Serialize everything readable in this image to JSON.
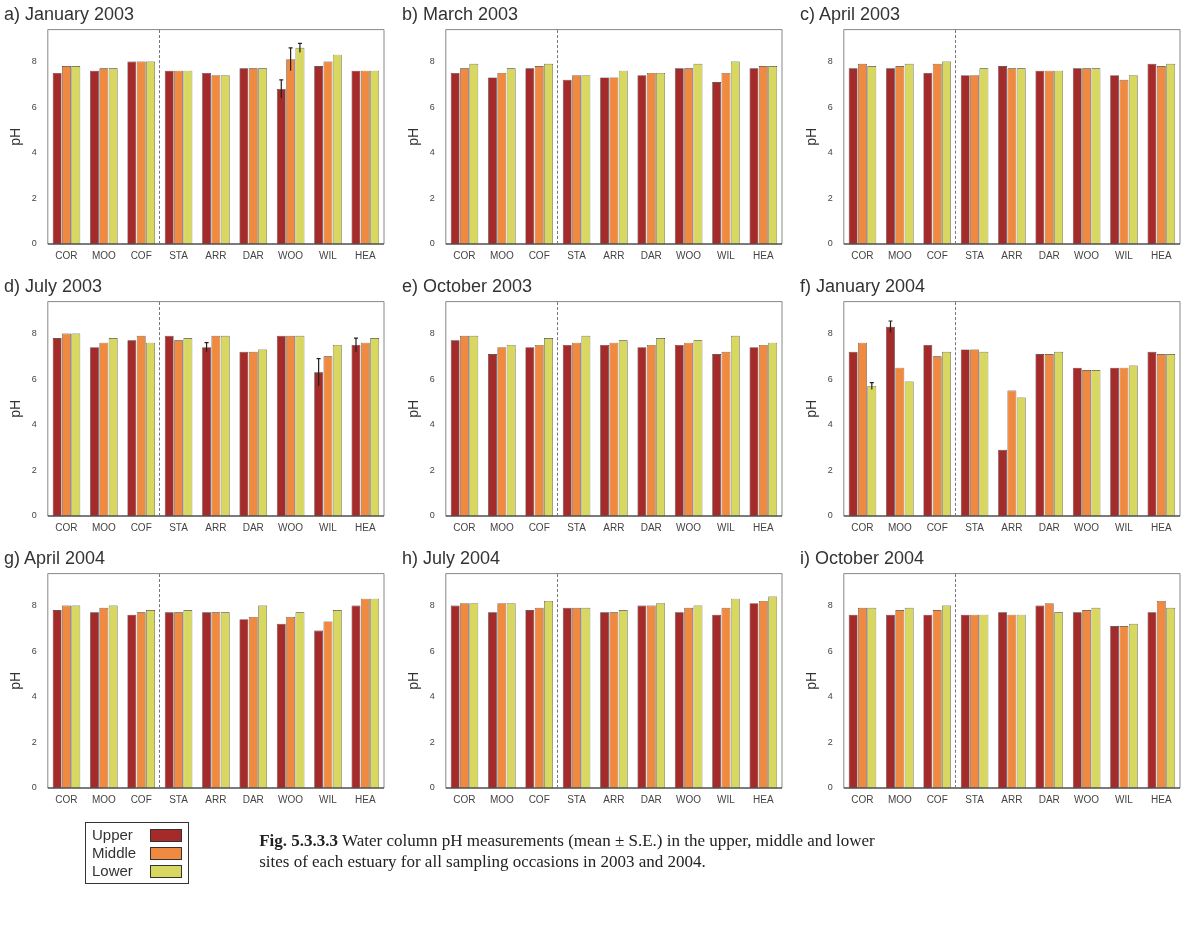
{
  "chart_data": [
    {
      "type": "bar",
      "title": "a) January 2003",
      "ylabel": "pH",
      "categories": [
        "COR",
        "MOO",
        "COF",
        "STA",
        "ARR",
        "DAR",
        "WOO",
        "WIL",
        "HEA"
      ],
      "ylim": [
        0,
        9.4
      ],
      "yticks": [
        0,
        2,
        4,
        6,
        8
      ],
      "grid": false,
      "legend": false,
      "series": [
        {
          "color": "#a52a2a",
          "values": [
            7.5,
            7.6,
            8.0,
            7.6,
            7.5,
            7.7,
            6.8,
            7.8,
            7.6
          ],
          "errors": [
            null,
            null,
            null,
            null,
            null,
            null,
            0.4,
            null,
            null
          ]
        },
        {
          "color": "#f08a40",
          "values": [
            7.8,
            7.7,
            8.0,
            7.6,
            7.4,
            7.7,
            8.1,
            8.0,
            7.6
          ],
          "errors": [
            null,
            null,
            null,
            null,
            null,
            null,
            0.5,
            null,
            null
          ]
        },
        {
          "color": "#d8d860",
          "values": [
            7.8,
            7.7,
            8.0,
            7.6,
            7.4,
            7.7,
            8.6,
            8.3,
            7.6
          ],
          "errors": [
            null,
            null,
            null,
            null,
            null,
            null,
            0.2,
            null,
            null
          ]
        }
      ]
    },
    {
      "type": "bar",
      "title": "b) March 2003",
      "ylabel": "pH",
      "categories": [
        "COR",
        "MOO",
        "COF",
        "STA",
        "ARR",
        "DAR",
        "WOO",
        "WIL",
        "HEA"
      ],
      "ylim": [
        0,
        9.4
      ],
      "yticks": [
        0,
        2,
        4,
        6,
        8
      ],
      "grid": false,
      "legend": false,
      "series": [
        {
          "color": "#a52a2a",
          "values": [
            7.5,
            7.3,
            7.7,
            7.2,
            7.3,
            7.4,
            7.7,
            7.1,
            7.7
          ]
        },
        {
          "color": "#f08a40",
          "values": [
            7.7,
            7.5,
            7.8,
            7.4,
            7.3,
            7.5,
            7.7,
            7.5,
            7.8
          ]
        },
        {
          "color": "#d8d860",
          "values": [
            7.9,
            7.7,
            7.9,
            7.4,
            7.6,
            7.5,
            7.9,
            8.0,
            7.8
          ]
        }
      ]
    },
    {
      "type": "bar",
      "title": "c) April 2003",
      "ylabel": "pH",
      "categories": [
        "COR",
        "MOO",
        "COF",
        "STA",
        "ARR",
        "DAR",
        "WOO",
        "WIL",
        "HEA"
      ],
      "ylim": [
        0,
        9.4
      ],
      "yticks": [
        0,
        2,
        4,
        6,
        8
      ],
      "grid": false,
      "legend": false,
      "series": [
        {
          "color": "#a52a2a",
          "values": [
            7.7,
            7.7,
            7.5,
            7.4,
            7.8,
            7.6,
            7.7,
            7.4,
            7.9
          ]
        },
        {
          "color": "#f08a40",
          "values": [
            7.9,
            7.8,
            7.9,
            7.4,
            7.7,
            7.6,
            7.7,
            7.2,
            7.8
          ]
        },
        {
          "color": "#d8d860",
          "values": [
            7.8,
            7.9,
            8.0,
            7.7,
            7.7,
            7.6,
            7.7,
            7.4,
            7.9
          ]
        }
      ]
    },
    {
      "type": "bar",
      "title": "d) July 2003",
      "ylabel": "pH",
      "categories": [
        "COR",
        "MOO",
        "COF",
        "STA",
        "ARR",
        "DAR",
        "WOO",
        "WIL",
        "HEA"
      ],
      "ylim": [
        0,
        9.4
      ],
      "yticks": [
        0,
        2,
        4,
        6,
        8
      ],
      "grid": false,
      "legend": false,
      "series": [
        {
          "color": "#a52a2a",
          "values": [
            7.8,
            7.4,
            7.7,
            7.9,
            7.4,
            7.2,
            7.9,
            6.3,
            7.5
          ],
          "errors": [
            null,
            null,
            null,
            null,
            0.2,
            null,
            null,
            0.6,
            0.3
          ]
        },
        {
          "color": "#f08a40",
          "values": [
            8.0,
            7.6,
            7.9,
            7.7,
            7.9,
            7.2,
            7.9,
            7.0,
            7.6
          ]
        },
        {
          "color": "#d8d860",
          "values": [
            8.0,
            7.8,
            7.6,
            7.8,
            7.9,
            7.3,
            7.9,
            7.5,
            7.8
          ]
        }
      ]
    },
    {
      "type": "bar",
      "title": "e) October 2003",
      "ylabel": "pH",
      "categories": [
        "COR",
        "MOO",
        "COF",
        "STA",
        "ARR",
        "DAR",
        "WOO",
        "WIL",
        "HEA"
      ],
      "ylim": [
        0,
        9.4
      ],
      "yticks": [
        0,
        2,
        4,
        6,
        8
      ],
      "grid": false,
      "legend": false,
      "series": [
        {
          "color": "#a52a2a",
          "values": [
            7.7,
            7.1,
            7.4,
            7.5,
            7.5,
            7.4,
            7.5,
            7.1,
            7.4
          ]
        },
        {
          "color": "#f08a40",
          "values": [
            7.9,
            7.4,
            7.5,
            7.6,
            7.6,
            7.5,
            7.6,
            7.2,
            7.5
          ]
        },
        {
          "color": "#d8d860",
          "values": [
            7.9,
            7.5,
            7.8,
            7.9,
            7.7,
            7.8,
            7.7,
            7.9,
            7.6
          ]
        }
      ]
    },
    {
      "type": "bar",
      "title": "f) January 2004",
      "ylabel": "pH",
      "categories": [
        "COR",
        "MOO",
        "COF",
        "STA",
        "ARR",
        "DAR",
        "WOO",
        "WIL",
        "HEA"
      ],
      "ylim": [
        0,
        9.4
      ],
      "yticks": [
        0,
        2,
        4,
        6,
        8
      ],
      "grid": false,
      "legend": false,
      "series": [
        {
          "color": "#a52a2a",
          "values": [
            7.2,
            8.3,
            7.5,
            7.3,
            2.9,
            7.1,
            6.5,
            6.5,
            7.2
          ],
          "errors": [
            null,
            0.25,
            null,
            null,
            null,
            null,
            null,
            null,
            null
          ]
        },
        {
          "color": "#f08a40",
          "values": [
            7.6,
            6.5,
            7.0,
            7.3,
            5.5,
            7.1,
            6.4,
            6.5,
            7.1
          ]
        },
        {
          "color": "#d8d860",
          "values": [
            5.7,
            5.9,
            7.2,
            7.2,
            5.2,
            7.2,
            6.4,
            6.6,
            7.1
          ],
          "errors": [
            0.15,
            null,
            null,
            null,
            null,
            null,
            null,
            null,
            null
          ]
        }
      ]
    },
    {
      "type": "bar",
      "title": "g) April 2004",
      "ylabel": "pH",
      "categories": [
        "COR",
        "MOO",
        "COF",
        "STA",
        "ARR",
        "DAR",
        "WOO",
        "WIL",
        "HEA"
      ],
      "ylim": [
        0,
        9.4
      ],
      "yticks": [
        0,
        2,
        4,
        6,
        8
      ],
      "grid": false,
      "legend": "bottom left",
      "annotations": [
        "Fig. 5.3.3.3  Water column pH measurements (mean ± S.E.) in the upper, middle and lower sites of each estuary for all sampling occasions in 2003 and 2004."
      ],
      "series": [
        {
          "name": "Upper",
          "color": "#a52a2a",
          "values": [
            7.8,
            7.7,
            7.6,
            7.7,
            7.7,
            7.4,
            7.2,
            6.9,
            8.0
          ]
        },
        {
          "name": "Middle",
          "color": "#f08a40",
          "values": [
            8.0,
            7.9,
            7.7,
            7.7,
            7.7,
            7.5,
            7.5,
            7.3,
            8.3
          ]
        },
        {
          "name": "Lower",
          "color": "#d8d860",
          "values": [
            8.0,
            8.0,
            7.8,
            7.8,
            7.7,
            8.0,
            7.7,
            7.8,
            8.3
          ]
        }
      ]
    },
    {
      "type": "bar",
      "title": "h) July 2004",
      "ylabel": "pH",
      "categories": [
        "COR",
        "MOO",
        "COF",
        "STA",
        "ARR",
        "DAR",
        "WOO",
        "WIL",
        "HEA"
      ],
      "ylim": [
        0,
        9.4
      ],
      "yticks": [
        0,
        2,
        4,
        6,
        8
      ],
      "grid": false,
      "legend": false,
      "series": [
        {
          "color": "#a52a2a",
          "values": [
            8.0,
            7.7,
            7.8,
            7.9,
            7.7,
            8.0,
            7.7,
            7.6,
            8.1
          ]
        },
        {
          "color": "#f08a40",
          "values": [
            8.1,
            8.1,
            7.9,
            7.9,
            7.7,
            8.0,
            7.9,
            7.9,
            8.2
          ]
        },
        {
          "color": "#d8d860",
          "values": [
            8.1,
            8.1,
            8.2,
            7.9,
            7.8,
            8.1,
            8.0,
            8.3,
            8.4
          ]
        }
      ]
    },
    {
      "type": "bar",
      "title": "i) October 2004",
      "ylabel": "pH",
      "categories": [
        "COR",
        "MOO",
        "COF",
        "STA",
        "ARR",
        "DAR",
        "WOO",
        "WIL",
        "HEA"
      ],
      "ylim": [
        0,
        9.4
      ],
      "yticks": [
        0,
        2,
        4,
        6,
        8
      ],
      "grid": false,
      "legend": false,
      "series": [
        {
          "color": "#a52a2a",
          "values": [
            7.6,
            7.6,
            7.6,
            7.6,
            7.7,
            8.0,
            7.7,
            7.1,
            7.7
          ]
        },
        {
          "color": "#f08a40",
          "values": [
            7.9,
            7.8,
            7.8,
            7.6,
            7.6,
            8.1,
            7.8,
            7.1,
            8.2
          ]
        },
        {
          "color": "#d8d860",
          "values": [
            7.9,
            7.9,
            8.0,
            7.6,
            7.6,
            7.7,
            7.9,
            7.2,
            7.9
          ]
        }
      ]
    }
  ]
}
